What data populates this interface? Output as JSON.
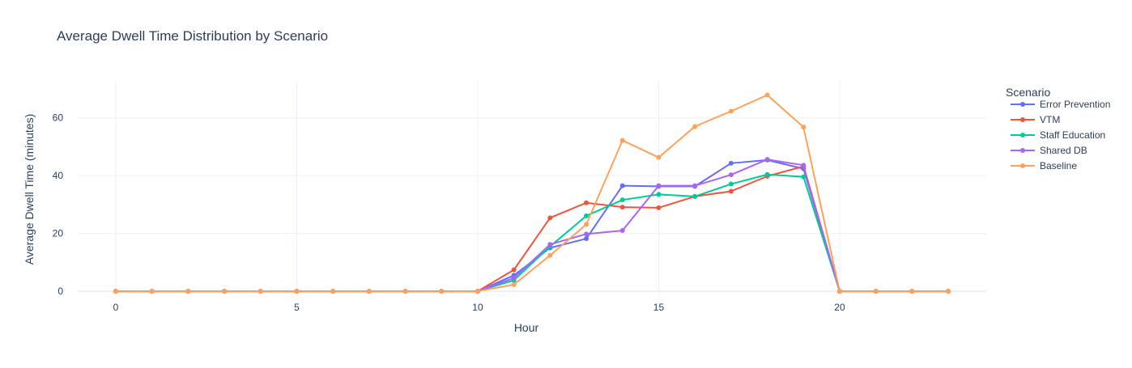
{
  "chart_data": {
    "type": "line",
    "title": "Average Dwell Time Distribution by Scenario",
    "xlabel": "Hour",
    "ylabel": "Average Dwell Time (minutes)",
    "xlim": [
      -1.05,
      24.05
    ],
    "ylim": [
      -1.1,
      72.8
    ],
    "x_ticks": [
      0,
      5,
      10,
      15,
      20
    ],
    "y_ticks": [
      0,
      20,
      40,
      60
    ],
    "grid": true,
    "legend": {
      "title": "Scenario",
      "position": "right"
    },
    "x": [
      0,
      1,
      2,
      3,
      4,
      5,
      6,
      7,
      8,
      9,
      10,
      11,
      12,
      13,
      14,
      15,
      16,
      17,
      18,
      19,
      20,
      21,
      22,
      23
    ],
    "series": [
      {
        "name": "Error Prevention",
        "color": "#636efa",
        "values": [
          0,
          0,
          0,
          0,
          0,
          0,
          0,
          0,
          0,
          0,
          0,
          5.5,
          15.0,
          18.2,
          36.5,
          36.3,
          36.3,
          44.3,
          45.4,
          42.4,
          0,
          0,
          0,
          0
        ]
      },
      {
        "name": "VTM",
        "color": "#EF553B",
        "values": [
          0,
          0,
          0,
          0,
          0,
          0,
          0,
          0,
          0,
          0,
          0,
          7.4,
          25.4,
          30.6,
          29.1,
          28.9,
          32.8,
          34.6,
          39.8,
          43.2,
          0,
          0,
          0,
          0
        ]
      },
      {
        "name": "Staff Education",
        "color": "#00cc96",
        "values": [
          0,
          0,
          0,
          0,
          0,
          0,
          0,
          0,
          0,
          0,
          0,
          3.8,
          15.5,
          26.1,
          31.6,
          33.5,
          32.8,
          37.1,
          40.4,
          39.6,
          0,
          0,
          0,
          0
        ]
      },
      {
        "name": "Shared DB",
        "color": "#ab63fa",
        "values": [
          0,
          0,
          0,
          0,
          0,
          0,
          0,
          0,
          0,
          0,
          0,
          4.6,
          16.2,
          19.8,
          21.0,
          36.5,
          36.5,
          40.3,
          45.6,
          43.6,
          0,
          0,
          0,
          0
        ]
      },
      {
        "name": "Baseline",
        "color": "#FFA15A",
        "values": [
          0,
          0,
          0,
          0,
          0,
          0,
          0,
          0,
          0,
          0,
          0,
          2.3,
          12.4,
          23.1,
          52.2,
          46.3,
          57.0,
          62.3,
          67.9,
          56.8,
          0,
          0,
          0,
          0
        ]
      }
    ]
  }
}
